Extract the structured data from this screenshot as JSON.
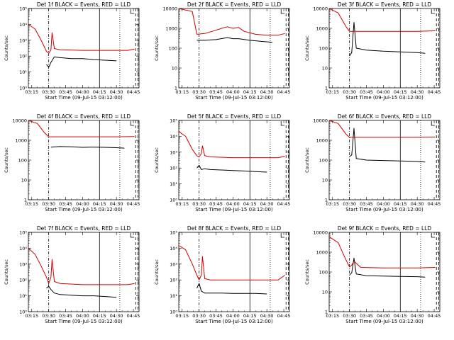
{
  "figure": {
    "common_title": "BLACK = Events, RED = LLD",
    "xlabel_prefix": "Start Time",
    "start_time": "(09-Jul-15 03:12:00)",
    "ylabel": "Counts/sec",
    "x_ticks": [
      "03:15",
      "03:30",
      "03:45",
      "04:00",
      "04:15",
      "04:30",
      "04:45"
    ]
  },
  "chart_data": [
    {
      "type": "line",
      "title": "Det 1f",
      "ylog": true,
      "ylim": [
        1,
        100000
      ],
      "y_ticks": [
        "10⁰",
        "10¹",
        "10²",
        "10³",
        "10⁴",
        "10⁵"
      ],
      "vlines": {
        "dashdot": "03:30",
        "solid": "04:15",
        "dotted": "04:33",
        "dashed": [
          "04:47",
          "04:49"
        ]
      },
      "series": [
        {
          "name": "Events",
          "color": "#000000",
          "x": [
            "03:28",
            "03:30",
            "03:32",
            "03:35",
            "03:40",
            "03:50",
            "04:00",
            "04:10",
            "04:20",
            "04:30"
          ],
          "y": [
            30,
            20,
            40,
            90,
            80,
            70,
            70,
            60,
            55,
            50
          ]
        },
        {
          "name": "LLD",
          "color": "#d00000",
          "x": [
            "03:12",
            "03:18",
            "03:24",
            "03:28",
            "03:30",
            "03:32",
            "03:33",
            "03:35",
            "03:40",
            "04:00",
            "04:20",
            "04:40",
            "04:46"
          ],
          "y": [
            10000,
            5000,
            800,
            200,
            150,
            250,
            3000,
            300,
            250,
            230,
            230,
            230,
            280
          ]
        }
      ]
    },
    {
      "type": "line",
      "title": "Det 2f",
      "ylog": true,
      "ylim": [
        1,
        10000
      ],
      "y_ticks": [
        "1",
        "10",
        "100",
        "1000",
        "10000"
      ],
      "vlines": {
        "dashdot": "03:30",
        "solid": "04:15",
        "dotted": "04:33",
        "dashed": [
          "04:47",
          "04:49"
        ]
      },
      "series": [
        {
          "name": "Events",
          "color": "#000000",
          "x": [
            "03:28",
            "03:35",
            "03:45",
            "03:55",
            "04:00",
            "04:05",
            "04:15",
            "04:25",
            "04:35"
          ],
          "y": [
            250,
            250,
            270,
            340,
            300,
            300,
            250,
            220,
            200
          ]
        },
        {
          "name": "LLD",
          "color": "#d00000",
          "x": [
            "03:12",
            "03:24",
            "03:28",
            "03:35",
            "03:45",
            "03:50",
            "03:55",
            "04:00",
            "04:05",
            "04:10",
            "04:20",
            "04:30",
            "04:40",
            "04:46"
          ],
          "y": [
            10000,
            7000,
            500,
            550,
            800,
            1000,
            1200,
            1000,
            1100,
            700,
            500,
            450,
            450,
            550
          ]
        }
      ]
    },
    {
      "type": "line",
      "title": "Det 3f",
      "ylog": true,
      "ylim": [
        1,
        10000
      ],
      "y_ticks": [
        "1",
        "10",
        "100",
        "1000",
        "10000"
      ],
      "vlines": {
        "dashdot": "03:30",
        "solid": "04:15",
        "dotted": "04:33",
        "dashed": [
          "04:47",
          "04:49"
        ]
      },
      "series": [
        {
          "name": "Events",
          "color": "#000000",
          "x": [
            "03:30",
            "03:32",
            "03:34",
            "03:36",
            "03:45",
            "04:00",
            "04:15",
            "04:30",
            "04:37"
          ],
          "y": [
            40,
            60,
            2000,
            100,
            80,
            70,
            65,
            60,
            55
          ]
        },
        {
          "name": "LLD",
          "color": "#d00000",
          "x": [
            "03:12",
            "03:20",
            "03:27",
            "03:30",
            "03:35",
            "03:45",
            "04:00",
            "04:30",
            "04:46"
          ],
          "y": [
            10000,
            6000,
            1200,
            700,
            700,
            700,
            700,
            700,
            750
          ]
        }
      ]
    },
    {
      "type": "line",
      "title": "Det 4f",
      "ylog": true,
      "ylim": [
        1,
        10000
      ],
      "y_ticks": [
        "1",
        "10",
        "100",
        "1000",
        "10000"
      ],
      "vlines": {
        "dashdot": "03:30",
        "solid": "04:15",
        "dotted": "04:33",
        "dashed": [
          "04:47",
          "04:49"
        ]
      },
      "series": [
        {
          "name": "Events",
          "color": "#000000",
          "x": [
            "03:32",
            "03:40",
            "03:50",
            "04:00",
            "04:10",
            "04:20",
            "04:30",
            "04:37"
          ],
          "y": [
            450,
            480,
            470,
            440,
            450,
            440,
            420,
            400
          ]
        },
        {
          "name": "LLD",
          "color": "#d00000",
          "x": [
            "03:12",
            "03:20",
            "03:26",
            "03:30",
            "03:35",
            "04:00",
            "04:30",
            "04:46"
          ],
          "y": [
            10000,
            7000,
            2500,
            1500,
            1500,
            1500,
            1500,
            1550
          ]
        }
      ]
    },
    {
      "type": "line",
      "title": "Det 5f",
      "ylog": true,
      "ylim": [
        1,
        100000
      ],
      "y_ticks": [
        "10⁰",
        "10¹",
        "10²",
        "10³",
        "10⁴",
        "10⁵"
      ],
      "vlines": {
        "dashdot": "03:30",
        "solid": "04:15",
        "dotted": "04:33",
        "dashed": [
          "04:47",
          "04:49"
        ]
      },
      "series": [
        {
          "name": "Events",
          "color": "#000000",
          "x": [
            "03:28",
            "03:30",
            "03:32",
            "03:35",
            "03:40",
            "03:50",
            "04:00",
            "04:10",
            "04:20",
            "04:30"
          ],
          "y": [
            100,
            150,
            80,
            90,
            80,
            75,
            70,
            65,
            60,
            55
          ]
        },
        {
          "name": "LLD",
          "color": "#d00000",
          "x": [
            "03:12",
            "03:18",
            "03:24",
            "03:28",
            "03:30",
            "03:32",
            "03:33",
            "03:35",
            "03:40",
            "04:00",
            "04:20",
            "04:40",
            "04:46"
          ],
          "y": [
            20000,
            10000,
            1500,
            600,
            500,
            800,
            2500,
            600,
            500,
            450,
            450,
            450,
            550
          ]
        }
      ]
    },
    {
      "type": "line",
      "title": "Det 6f",
      "ylog": true,
      "ylim": [
        1,
        10000
      ],
      "y_ticks": [
        "1",
        "10",
        "100",
        "1000",
        "10000"
      ],
      "vlines": {
        "dashdot": "03:30",
        "solid": "04:15",
        "dotted": "04:33",
        "dashed": [
          "04:47",
          "04:49"
        ]
      },
      "series": [
        {
          "name": "Events",
          "color": "#000000",
          "x": [
            "03:30",
            "03:32",
            "03:34",
            "03:36",
            "03:45",
            "04:00",
            "04:15",
            "04:30",
            "04:37"
          ],
          "y": [
            150,
            180,
            4000,
            120,
            100,
            95,
            90,
            85,
            80
          ]
        },
        {
          "name": "LLD",
          "color": "#d00000",
          "x": [
            "03:12",
            "03:20",
            "03:27",
            "03:30",
            "03:35",
            "03:45",
            "04:00",
            "04:30",
            "04:46"
          ],
          "y": [
            10000,
            7000,
            2000,
            1400,
            1400,
            1400,
            1400,
            1400,
            1450
          ]
        }
      ]
    },
    {
      "type": "line",
      "title": "Det 7f",
      "ylog": true,
      "ylim": [
        1,
        100000
      ],
      "y_ticks": [
        "10⁰",
        "10¹",
        "10²",
        "10³",
        "10⁴",
        "10⁵"
      ],
      "vlines": {
        "dashdot": "03:30",
        "solid": "04:15",
        "dotted": "04:33",
        "dashed": [
          "04:47",
          "04:49"
        ]
      },
      "series": [
        {
          "name": "Events",
          "color": "#000000",
          "x": [
            "03:28",
            "03:30",
            "03:32",
            "03:35",
            "03:40",
            "03:50",
            "04:00",
            "04:10",
            "04:20",
            "04:30"
          ],
          "y": [
            30,
            40,
            25,
            15,
            12,
            11,
            10,
            10,
            9,
            8
          ]
        },
        {
          "name": "LLD",
          "color": "#d00000",
          "x": [
            "03:12",
            "03:18",
            "03:24",
            "03:28",
            "03:30",
            "03:32",
            "03:33",
            "03:35",
            "03:40",
            "04:00",
            "04:20",
            "04:40",
            "04:46"
          ],
          "y": [
            10000,
            4000,
            600,
            150,
            60,
            150,
            2000,
            80,
            60,
            50,
            50,
            50,
            60
          ]
        }
      ]
    },
    {
      "type": "line",
      "title": "Det 8f",
      "ylog": true,
      "ylim": [
        1,
        100000
      ],
      "y_ticks": [
        "10⁰",
        "10¹",
        "10²",
        "10³",
        "10⁴",
        "10⁵"
      ],
      "vlines": {
        "dashdot": "03:30",
        "solid": "04:15",
        "dotted": "04:33",
        "dashed": [
          "04:47",
          "04:49"
        ]
      },
      "series": [
        {
          "name": "Events",
          "color": "#000000",
          "x": [
            "03:28",
            "03:30",
            "03:32",
            "03:35",
            "03:40",
            "03:50",
            "04:00",
            "04:10",
            "04:20",
            "04:30"
          ],
          "y": [
            30,
            60,
            20,
            15,
            15,
            15,
            14,
            14,
            14,
            13
          ]
        },
        {
          "name": "LLD",
          "color": "#d00000",
          "x": [
            "03:12",
            "03:18",
            "03:24",
            "03:28",
            "03:30",
            "03:32",
            "03:33",
            "03:35",
            "03:40",
            "04:00",
            "04:20",
            "04:40",
            "04:46"
          ],
          "y": [
            15000,
            8000,
            1000,
            200,
            100,
            200,
            3000,
            120,
            100,
            100,
            100,
            100,
            200
          ]
        }
      ]
    },
    {
      "type": "line",
      "title": "Det 9f",
      "ylog": true,
      "ylim": [
        1,
        10000
      ],
      "y_ticks": [
        "1",
        "10",
        "100",
        "1000",
        "10000"
      ],
      "vlines": {
        "dashdot": "03:30",
        "solid": "04:15",
        "dotted": "04:33",
        "dashed": [
          "04:47",
          "04:49"
        ]
      },
      "series": [
        {
          "name": "Events",
          "color": "#000000",
          "x": [
            "03:30",
            "03:32",
            "03:34",
            "03:36",
            "03:45",
            "04:00",
            "04:15",
            "04:30",
            "04:37"
          ],
          "y": [
            70,
            90,
            500,
            80,
            65,
            62,
            60,
            58,
            55
          ]
        },
        {
          "name": "LLD",
          "color": "#d00000",
          "x": [
            "03:12",
            "03:20",
            "03:25",
            "03:28",
            "03:30",
            "03:32",
            "03:34",
            "03:40",
            "04:00",
            "04:30",
            "04:46"
          ],
          "y": [
            6000,
            3000,
            700,
            300,
            180,
            220,
            350,
            170,
            160,
            160,
            170
          ]
        }
      ]
    }
  ]
}
